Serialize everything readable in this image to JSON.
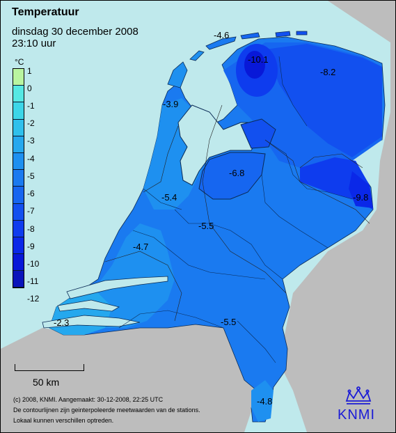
{
  "title": "Temperatuur",
  "date": "dinsdag 30 december 2008",
  "time": "23:10 uur",
  "legend": {
    "unit": "°C",
    "labels": [
      "1",
      "0",
      "-1",
      "-2",
      "-3",
      "-4",
      "-5",
      "-6",
      "-7",
      "-8",
      "-9",
      "-10",
      "-11",
      "-12"
    ],
    "colors": [
      "#b9f5a0",
      "#55e8e3",
      "#3cd6e8",
      "#2fc0ec",
      "#25a8ee",
      "#1e90f0",
      "#1a7af0",
      "#1666f0",
      "#1250ef",
      "#0e3cee",
      "#0a28e8",
      "#0818d8",
      "#0a14bb"
    ]
  },
  "values": [
    {
      "name": "value-northwest",
      "text": "-4.6"
    },
    {
      "name": "value-groningen",
      "text": "-10.1"
    },
    {
      "name": "value-northeast",
      "text": "-8.2"
    },
    {
      "name": "value-denhelder",
      "text": "-3.9"
    },
    {
      "name": "value-flevoland",
      "text": "-6.8"
    },
    {
      "name": "value-twente",
      "text": "-9.8"
    },
    {
      "name": "value-amsterdam",
      "text": "-5.4"
    },
    {
      "name": "value-utrecht",
      "text": "-5.5"
    },
    {
      "name": "value-rotterdam",
      "text": "-4.7"
    },
    {
      "name": "value-zeeland",
      "text": "-2.3"
    },
    {
      "name": "value-brabant",
      "text": "-5.5"
    },
    {
      "name": "value-limburg",
      "text": "-4.8"
    }
  ],
  "scale": {
    "label": "50 km"
  },
  "notes": [
    "(c) 2008, KNMI. Aangemaakt: 30-12-2008, 22:25 UTC",
    "De contourlijnen zijn geinterpoleerde meetwaarden van de stations.",
    "Lokaal kunnen verschillen optreden."
  ],
  "logo": {
    "text": "KNMI",
    "color": "#1b1bd6"
  },
  "colors": {
    "sea": "#bfe9ec",
    "land_foreign": "#bdbdbd"
  }
}
